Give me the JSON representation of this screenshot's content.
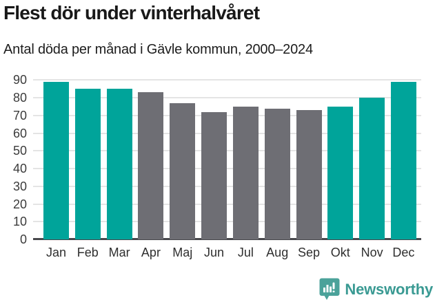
{
  "chart_data": {
    "type": "bar",
    "title": "Flest dör under vinterhalvåret",
    "subtitle": "Antal döda per månad i Gävle kommun, 2000–2024",
    "categories": [
      "Jan",
      "Feb",
      "Mar",
      "Apr",
      "Maj",
      "Jun",
      "Jul",
      "Aug",
      "Sep",
      "Okt",
      "Nov",
      "Dec"
    ],
    "values": [
      89,
      85,
      85,
      83,
      77,
      72,
      75,
      74,
      73,
      75,
      80,
      89
    ],
    "bar_colors": [
      "teal",
      "teal",
      "teal",
      "gray",
      "gray",
      "gray",
      "gray",
      "gray",
      "gray",
      "teal",
      "teal",
      "teal"
    ],
    "palette": {
      "teal": "#00a49a",
      "gray": "#6e6e74"
    },
    "xlabel": "",
    "ylabel": "",
    "ylim": [
      0,
      90
    ],
    "yticks": [
      0,
      10,
      20,
      30,
      40,
      50,
      60,
      70,
      80,
      90
    ],
    "grid": "horizontal",
    "legend": "none"
  },
  "footer": {
    "brand": "Newsworthy",
    "brand_color": "#3a9a93",
    "logo_icon": "bar-chart-speech-bubble-icon",
    "logo_bg_color": "#4ba29a",
    "logo_glyph_color": "#ffffff"
  }
}
